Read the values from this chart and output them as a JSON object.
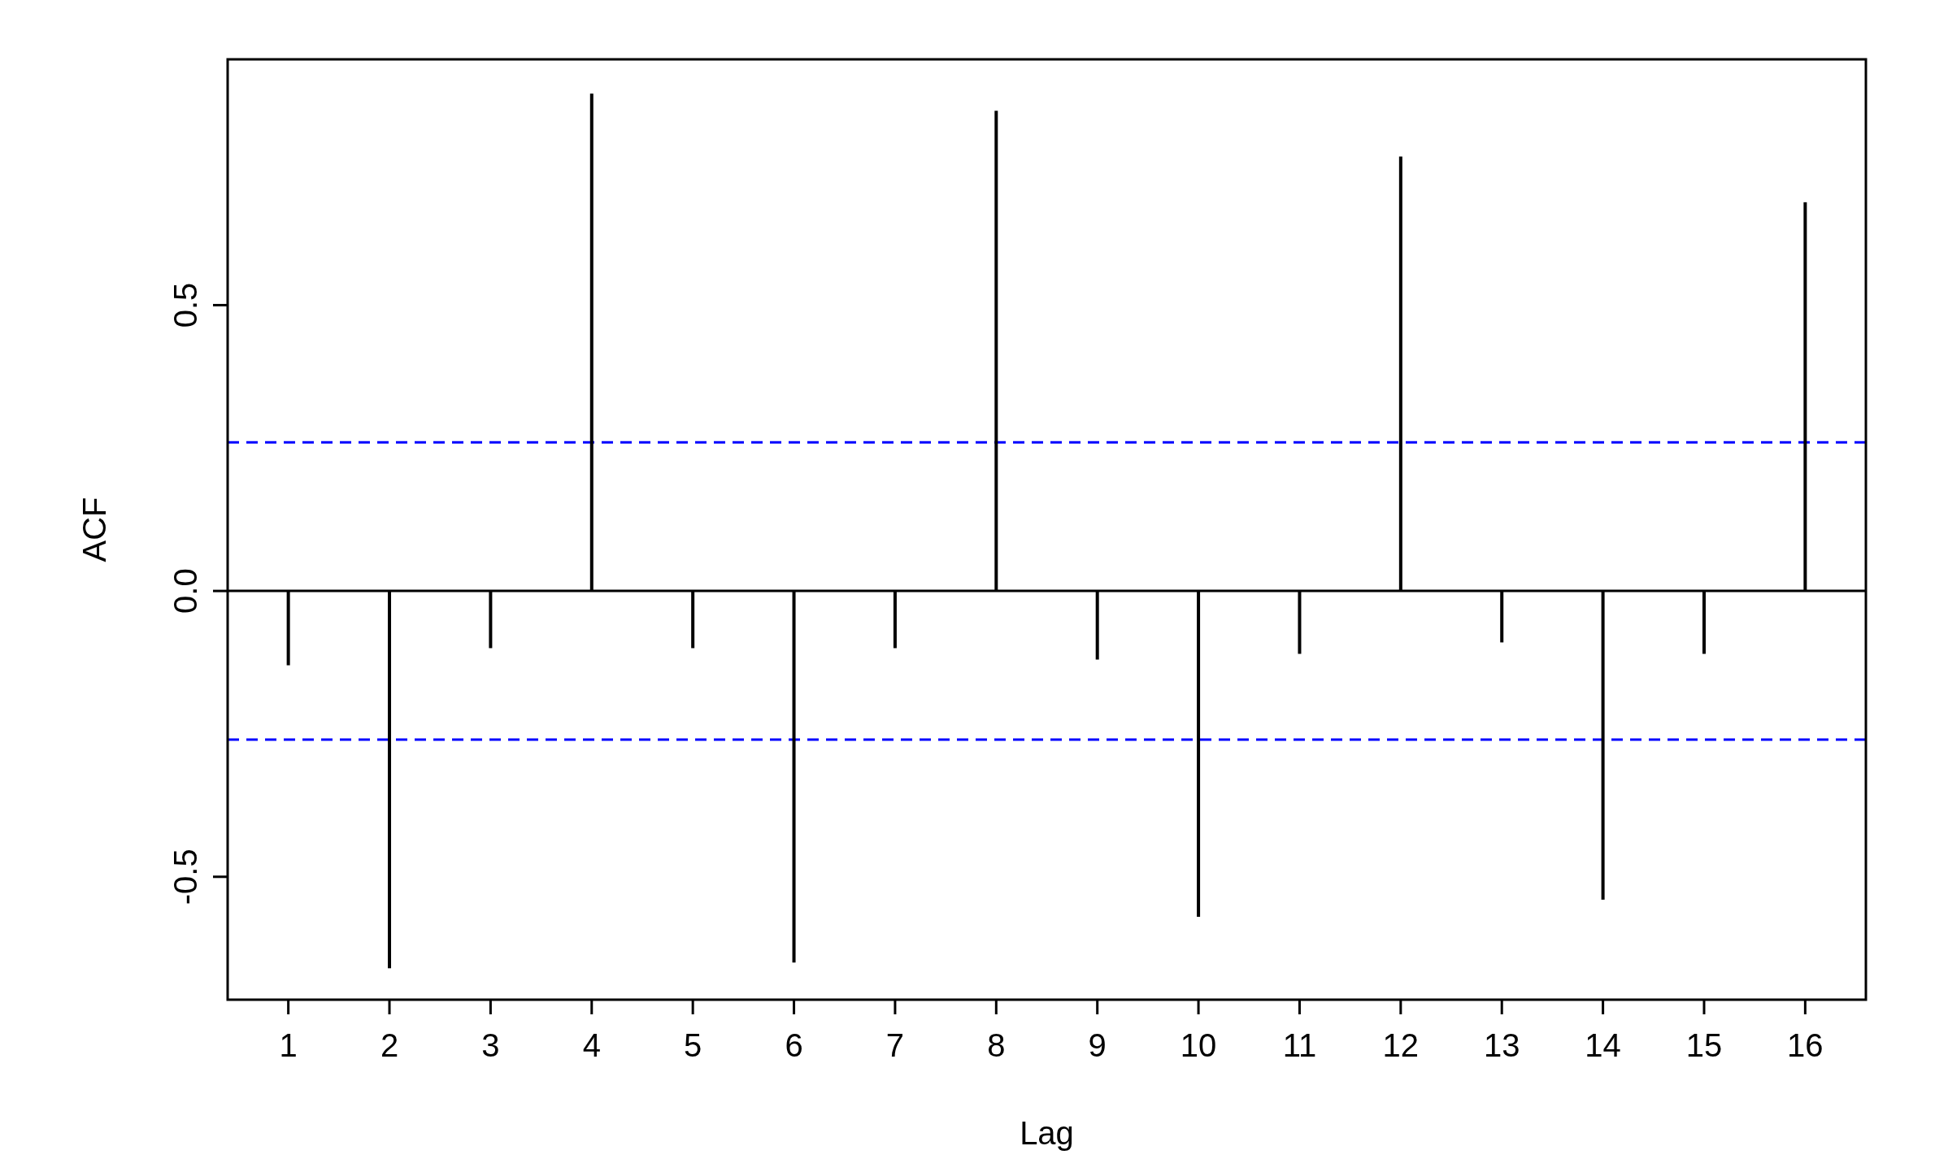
{
  "chart_data": {
    "type": "bar",
    "xlabel": "Lag",
    "ylabel": "ACF",
    "x": [
      1,
      2,
      3,
      4,
      5,
      6,
      7,
      8,
      9,
      10,
      11,
      12,
      13,
      14,
      15,
      16
    ],
    "values": [
      -0.13,
      -0.66,
      -0.1,
      0.87,
      -0.1,
      -0.65,
      -0.1,
      0.84,
      -0.12,
      -0.57,
      -0.11,
      0.76,
      -0.09,
      -0.54,
      -0.11,
      0.68
    ],
    "color": "#000000",
    "xlim": [
      0.4,
      16.6
    ],
    "xticks": [
      1,
      2,
      3,
      4,
      5,
      6,
      7,
      8,
      9,
      10,
      11,
      12,
      13,
      14,
      15,
      16
    ],
    "ylim": [
      -0.715,
      0.93
    ],
    "yticks": [
      -0.5,
      {
        "value": 0,
        "label": "0.0"
      },
      0.5
    ],
    "ref_lines": [
      {
        "axis": "y",
        "value": 0,
        "color": "#000000",
        "line_style": "solid"
      },
      {
        "axis": "y",
        "value": 0.26,
        "color": "#0000ff",
        "line_style": "dashed"
      },
      {
        "axis": "y",
        "value": -0.26,
        "color": "#0000ff",
        "line_style": "dashed"
      }
    ],
    "grid": false
  }
}
